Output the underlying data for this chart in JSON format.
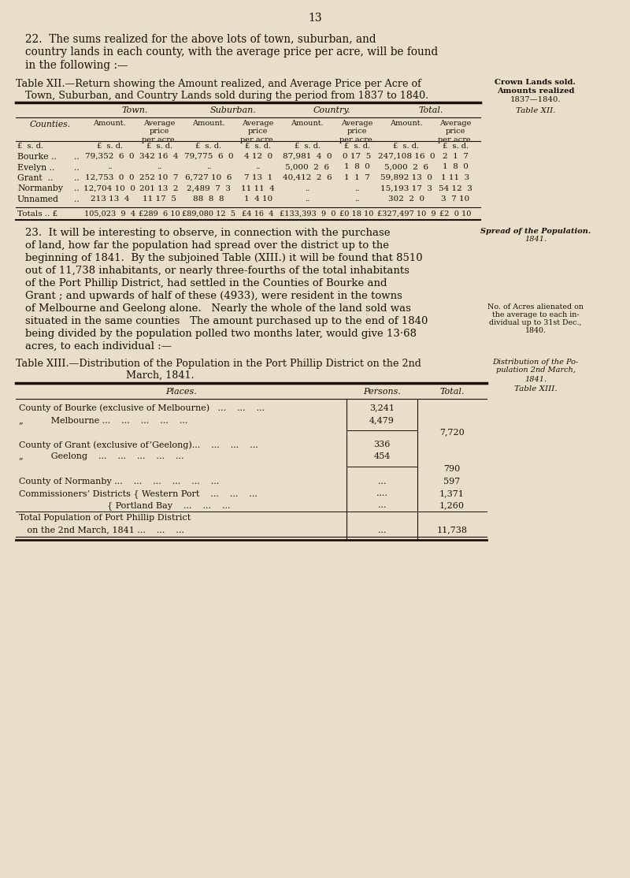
{
  "bg_color": "#e8dfc8",
  "text_color": "#1a1008",
  "page_number": "13",
  "para22_lines": [
    "22.  The sums realized for the above lots of town, suburban, and",
    "country lands in each county, with the average price per acre, will be found",
    "in the following :—"
  ],
  "table12_title_line1": "Table XII.—Return showing the Amount realized, and Average Price per Acre of",
  "table12_title_line2": "   Town, Suburban, and Country Lands sold during the period from 1837 to 1840.",
  "table12_side": [
    "Crown Lands sold.",
    "Amounts realized",
    "1837—1840.",
    "Table XII."
  ],
  "town_hdr": "Town.",
  "suburban_hdr": "Suburban.",
  "country_hdr": "Country.",
  "total_hdr": "Total.",
  "counties_lbl": "Counties.",
  "amount_lbl": "Amount.",
  "avg_lbl": "Average\nprice\nper acre.",
  "currency": "£  s. d.",
  "table12_data": [
    [
      "Bourke ..",
      "79,352  6  0",
      "342 16  4",
      "79,775  6  0",
      "4 12  0",
      "87,981  4  0",
      "0 17  5",
      "247,108 16  0",
      "2  1  7"
    ],
    [
      "Evelyn ..",
      "..",
      "..",
      "..",
      "..",
      "5,000  2  6",
      "1  8  0",
      "5,000  2  6",
      "1  8  0"
    ],
    [
      "Grant  ..",
      "12,753  0  0",
      "252 10  7",
      "6,727 10  6",
      "7 13  1",
      "40,412  2  6",
      "1  1  7",
      "59,892 13  0",
      "1 11  3"
    ],
    [
      "Normanby",
      "12,704 10  0",
      "201 13  2",
      "2,489  7  3",
      "11 11  4",
      "..",
      "..",
      "15,193 17  3",
      "54 12  3"
    ],
    [
      "Unnamed",
      "213 13  4",
      "11 17  5",
      "88  8  8",
      "1  4 10",
      "..",
      "..",
      "302  2  0",
      "3  7 10"
    ]
  ],
  "table12_totals_label": "Totals .. £",
  "table12_totals_vals": [
    "105,023  9  4",
    "£289  6 10",
    "£89,080 12  5",
    "£4 16  4",
    "£133,393  9  0",
    "£0 18 10",
    "£327,497 10  9",
    "£2  0 10"
  ],
  "para23_lines": [
    "23.  It will be interesting to observe, in connection with the purchase",
    "of land, how far the population had spread over the district up to the",
    "beginning of 1841.  By the subjoined Table (XIII.) it will be found that 8510",
    "out of 11,738 inhabitants, or nearly three-fourths of the total inhabitants",
    "of the Port Phillip District, had settled in the Counties of Bourke and",
    "Grant ; and upwards of half of these (4933), were resident in the towns",
    "of Melbourne and Geelong alone.   Nearly the whole of the land sold was",
    "situated in the same counties   The amount purchased up to the end of 1840",
    "being divided by the population polled two months later, would give 13·68",
    "acres, to each individual :—"
  ],
  "para23_side1": [
    "Spread of the Population.",
    "1841."
  ],
  "para23_side2": [
    "No. of Acres alienated on",
    "the average to each in-",
    "dividual up to 31st Dec.,",
    "1840."
  ],
  "table13_title_line1": "Table XIII.—Distribution of the Population in the Port Phillip District on the 2nd",
  "table13_title_line2": "March, 1841.",
  "table13_side": [
    "Distribution of the Po-",
    "pulation 2nd March,",
    "1841.",
    "Table XIII."
  ],
  "table13_hdr": [
    "Places.",
    "Persons.",
    "Total."
  ],
  "table13_data": [
    [
      "County of Bourke (exclusive of Melbourne)   ...    ...    ...",
      "3,241",
      ""
    ],
    [
      "„          Melbourne ...    ...    ...    ...    ...",
      "4,479",
      ""
    ],
    [
      "",
      "",
      "7,720"
    ],
    [
      "County of Grant (exclusive of’Geelong)...    ...    ...    ...",
      "336",
      ""
    ],
    [
      "„          Geelong    ...    ...    ...    ...    ...",
      "454",
      ""
    ],
    [
      "",
      "",
      "790"
    ],
    [
      "County of Normanby ...    ...    ...    ...    ...    ...",
      "...",
      "597"
    ],
    [
      "Commissioners’ Districts { Western Port    ...    ...    ...",
      "....",
      "1,371"
    ],
    [
      "                                { Portland Bay    ...    ...    ...",
      "...",
      "1,260"
    ],
    [
      "Total Population of Port Phillip District",
      "",
      ""
    ],
    [
      "   on the 2nd March, 1841 ...    ...    ...",
      "...",
      "11,738"
    ]
  ]
}
